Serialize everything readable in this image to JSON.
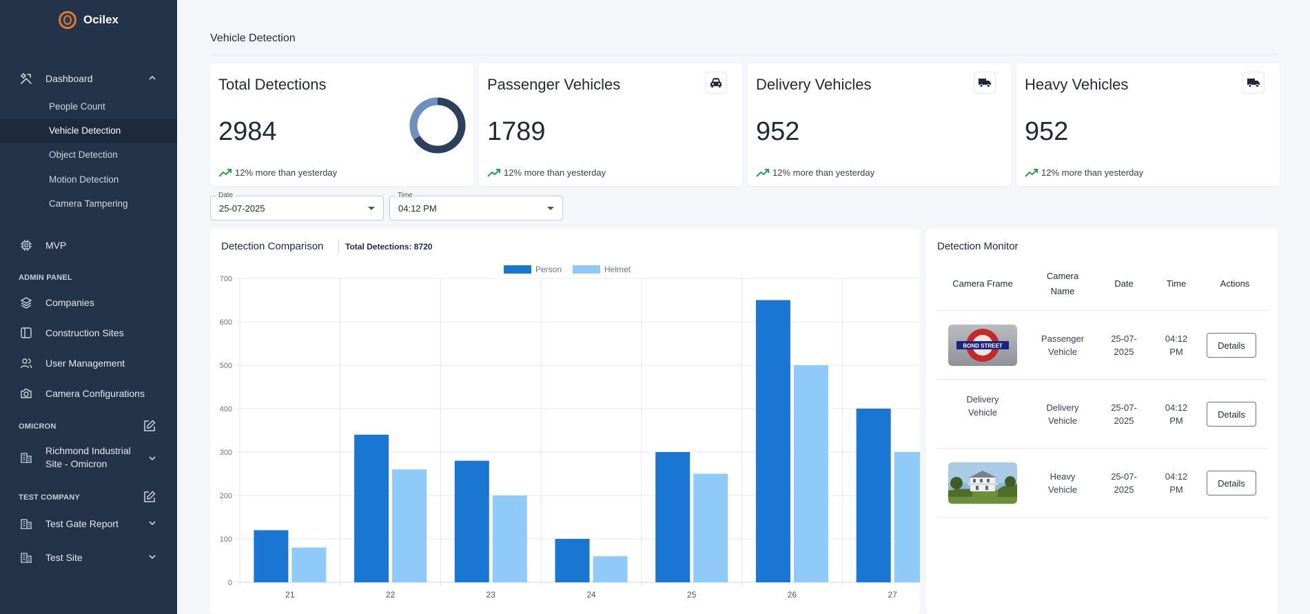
{
  "brand": {
    "name": "Ocilex"
  },
  "sidebar": {
    "dashboard": {
      "label": "Dashboard",
      "icon": "tools-icon"
    },
    "dashboard_items": [
      {
        "label": "People Count"
      },
      {
        "label": "Vehicle Detection",
        "active": true
      },
      {
        "label": "Object Detection"
      },
      {
        "label": "Motion Detection"
      },
      {
        "label": "Camera Tampering"
      }
    ],
    "mvp": {
      "label": "MVP",
      "icon": "chip-icon"
    },
    "admin_panel_label": "ADMIN PANEL",
    "admin_items": [
      {
        "label": "Companies",
        "icon": "layers-icon"
      },
      {
        "label": "Construction Sites",
        "icon": "panel-icon"
      },
      {
        "label": "User Management",
        "icon": "users-icon"
      },
      {
        "label": "Camera Configurations",
        "icon": "camera-icon"
      }
    ],
    "omicron_label": "OMICRON",
    "omicron_site": {
      "label_line1": "Richmond Industrial",
      "label_line2": "Site - Omicron"
    },
    "test_company_label": "TEST COMPANY",
    "test_items": [
      {
        "label": "Test Gate Report"
      },
      {
        "label": "Test Site"
      }
    ]
  },
  "page": {
    "title": "Vehicle Detection"
  },
  "stats": [
    {
      "label": "Total Detections",
      "value": "2984",
      "trend": "12% more than yesterday",
      "icon": "donut-icon"
    },
    {
      "label": "Passenger Vehicles",
      "value": "1789",
      "trend": "12% more than yesterday",
      "icon": "car-icon"
    },
    {
      "label": "Delivery Vehicles",
      "value": "952",
      "trend": "12% more than yesterday",
      "icon": "truck-icon"
    },
    {
      "label": "Heavy Vehicles",
      "value": "952",
      "trend": "12% more than yesterday",
      "icon": "truck-icon"
    }
  ],
  "filters": {
    "date": {
      "label": "Date",
      "value": "25-07-2025"
    },
    "time": {
      "label": "Time",
      "value": "04:12 PM"
    }
  },
  "comparison": {
    "title": "Detection Comparison",
    "total": "Total Detections: 8720"
  },
  "chart_data": {
    "type": "bar",
    "categories": [
      "21",
      "22",
      "23",
      "24",
      "25",
      "26",
      "27"
    ],
    "series": [
      {
        "name": "Person",
        "color": "#1976d2",
        "values": [
          120,
          340,
          280,
          100,
          300,
          650,
          400
        ]
      },
      {
        "name": "Helmet",
        "color": "#90caf9",
        "values": [
          80,
          260,
          200,
          60,
          250,
          500,
          300
        ]
      }
    ],
    "ylim": [
      0,
      700
    ],
    "yticks": [
      0,
      100,
      200,
      300,
      400,
      500,
      600,
      700
    ],
    "grid": true,
    "legend": "top-center"
  },
  "monitor": {
    "title": "Detection Monitor",
    "headers": {
      "frame": "Camera Frame",
      "name_line1": "Camera",
      "name_line2": "Name",
      "date": "Date",
      "time": "Time",
      "actions": "Actions"
    },
    "rows": [
      {
        "thumb": "bond-street-sign",
        "thumb_text": "BOND STREET",
        "name_line1": "Passenger",
        "name_line2": "Vehicle",
        "date_line1": "25-07-",
        "date_line2": "2025",
        "time_line1": "04:12",
        "time_line2": "PM",
        "action": "Details"
      },
      {
        "thumb": "broken",
        "alt_line1": "Delivery",
        "alt_line2": "Vehicle",
        "name_line1": "Delivery",
        "name_line2": "Vehicle",
        "date_line1": "25-07-",
        "date_line2": "2025",
        "time_line1": "04:12",
        "time_line2": "PM",
        "action": "Details"
      },
      {
        "thumb": "house-photo",
        "name_line1": "Heavy",
        "name_line2": "Vehicle",
        "date_line1": "25-07-",
        "date_line2": "2025",
        "time_line1": "04:12",
        "time_line2": "PM",
        "action": "Details"
      }
    ]
  }
}
